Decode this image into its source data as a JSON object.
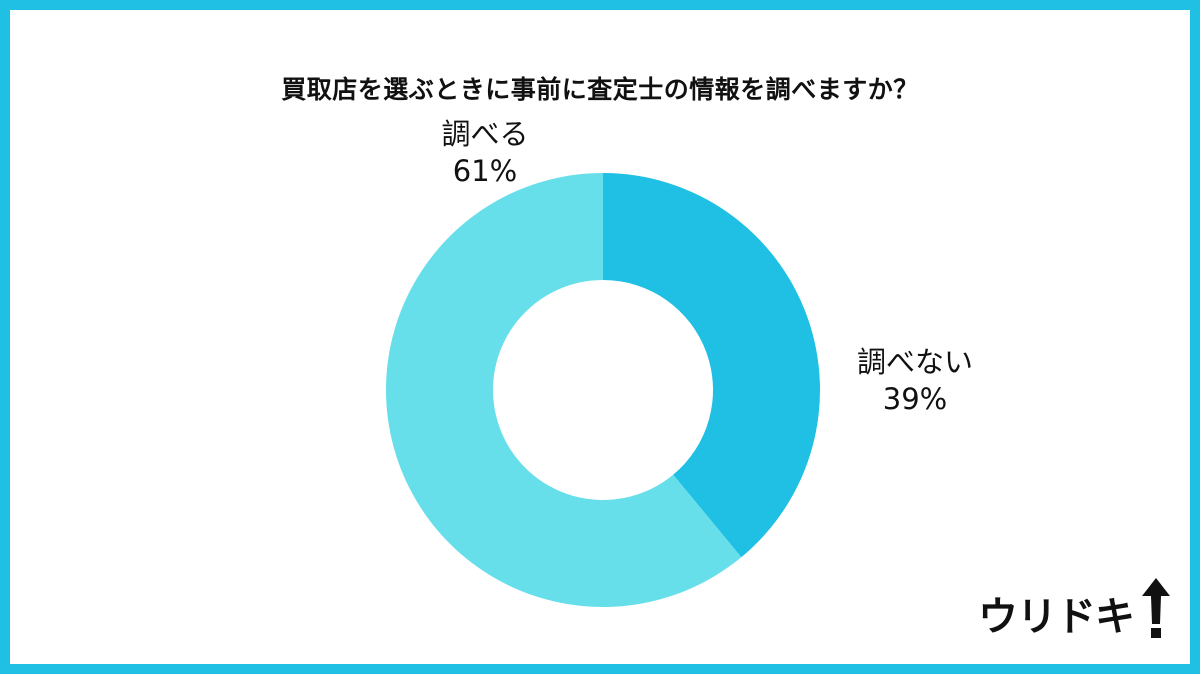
{
  "colors": {
    "frame": "#1fc0e3",
    "slice_yes": "#67dfea",
    "slice_no": "#1fc0e3",
    "text": "#111111"
  },
  "chart_data": {
    "type": "pie",
    "title": "買取店を選ぶときに事前に査定士の情報を調べますか？",
    "slices": [
      {
        "label": "調べない",
        "value": 39,
        "value_label": "39%"
      },
      {
        "label": "調べる",
        "value": 61,
        "value_label": "61%"
      }
    ],
    "donut": true,
    "start_angle": "top",
    "direction": "clockwise"
  },
  "logo": {
    "text": "ウリドキ",
    "icon": "up-arrow-exclamation-icon"
  }
}
